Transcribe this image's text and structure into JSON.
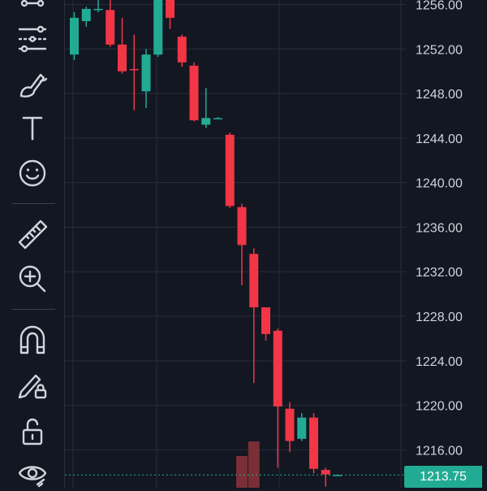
{
  "toolbar": {
    "tools": [
      {
        "name": "trend-line-icon"
      },
      {
        "name": "fib-retracement-icon"
      },
      {
        "name": "brush-icon"
      },
      {
        "name": "text-tool-icon"
      },
      {
        "name": "emoji-icon"
      },
      {
        "name": "ruler-icon"
      },
      {
        "name": "zoom-in-icon"
      },
      {
        "name": "magnet-icon"
      },
      {
        "name": "lock-drawing-icon"
      },
      {
        "name": "unlock-icon"
      },
      {
        "name": "eye-icon"
      }
    ]
  },
  "colors": {
    "background": "#131722",
    "up": "#22ab94",
    "down": "#f23645",
    "grid": "#2a2e39",
    "axis_text": "#d1d4dc",
    "volume_down": "#7a2e35"
  },
  "price_axis": {
    "labels": [
      "1256.00",
      "1252.00",
      "1248.00",
      "1244.00",
      "1240.00",
      "1236.00",
      "1232.00",
      "1228.00",
      "1224.00",
      "1220.00",
      "1216.00"
    ]
  },
  "last_price": "1213.75",
  "chart_data": {
    "type": "candlestick",
    "ylim": [
      1212.6,
      1256.4
    ],
    "candles": [
      {
        "o": 1251.5,
        "h": 1255.3,
        "l": 1251.0,
        "c": 1254.8
      },
      {
        "o": 1254.5,
        "h": 1255.8,
        "l": 1254.0,
        "c": 1255.6
      },
      {
        "o": 1255.6,
        "h": 1256.5,
        "l": 1255.3,
        "c": 1255.6
      },
      {
        "o": 1255.5,
        "h": 1256.4,
        "l": 1252.2,
        "c": 1252.4
      },
      {
        "o": 1252.4,
        "h": 1254.8,
        "l": 1249.8,
        "c": 1250.0
      },
      {
        "o": 1250.2,
        "h": 1253.3,
        "l": 1246.5,
        "c": 1250.1
      },
      {
        "o": 1248.2,
        "h": 1252.0,
        "l": 1246.7,
        "c": 1251.5
      },
      {
        "o": 1251.5,
        "h": 1257.0,
        "l": 1251.3,
        "c": 1256.7
      },
      {
        "o": 1256.6,
        "h": 1256.9,
        "l": 1253.8,
        "c": 1254.8
      },
      {
        "o": 1253.1,
        "h": 1253.3,
        "l": 1250.4,
        "c": 1250.8
      },
      {
        "o": 1250.5,
        "h": 1250.8,
        "l": 1245.5,
        "c": 1245.6
      },
      {
        "o": 1245.2,
        "h": 1248.5,
        "l": 1244.9,
        "c": 1245.8
      },
      {
        "o": 1245.8,
        "h": 1245.9,
        "l": 1245.7,
        "c": 1245.8
      },
      {
        "o": 1244.3,
        "h": 1244.5,
        "l": 1237.7,
        "c": 1237.9
      },
      {
        "o": 1237.8,
        "h": 1238.1,
        "l": 1230.8,
        "c": 1234.4
      },
      {
        "o": 1233.6,
        "h": 1234.1,
        "l": 1222.0,
        "c": 1228.8
      },
      {
        "o": 1228.8,
        "h": 1228.8,
        "l": 1225.8,
        "c": 1226.4
      },
      {
        "o": 1226.7,
        "h": 1226.9,
        "l": 1214.4,
        "c": 1219.9
      },
      {
        "o": 1219.7,
        "h": 1220.3,
        "l": 1215.8,
        "c": 1216.8
      },
      {
        "o": 1217.0,
        "h": 1219.3,
        "l": 1216.8,
        "c": 1218.9
      },
      {
        "o": 1218.9,
        "h": 1219.3,
        "l": 1213.9,
        "c": 1214.3
      },
      {
        "o": 1214.2,
        "h": 1214.4,
        "l": 1212.7,
        "c": 1213.8
      },
      {
        "o": 1213.75,
        "h": 1213.8,
        "l": 1213.7,
        "c": 1213.75
      }
    ]
  }
}
